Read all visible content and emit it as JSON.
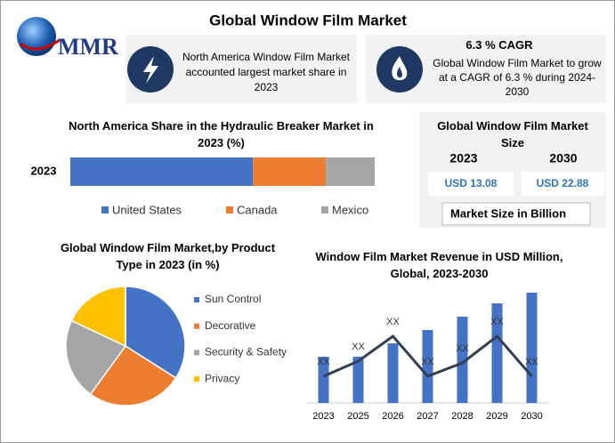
{
  "header": {
    "logo_text": "MMR",
    "title": "Global Window Film Market"
  },
  "highlights": [
    {
      "text": "North America Window Film Market accounted largest market share in 2023"
    },
    {
      "heading": "6.3 % CAGR",
      "text": "Global Window Film Market to grow at a CAGR of 6.3 % during 2024-2030"
    }
  ],
  "market_size": {
    "title": "Global Window Film Market Size",
    "years": [
      "2023",
      "2030"
    ],
    "values": [
      "USD 13.08",
      "USD 22.88"
    ],
    "unit": "Market Size in Billion"
  },
  "chart_data": [
    {
      "type": "bar",
      "stacked": true,
      "orientation": "horizontal",
      "title": "North America Share in the Hydraulic Breaker Market in 2023 (%)",
      "categories": [
        "2023"
      ],
      "legend": "bottom",
      "series": [
        {
          "name": "United States",
          "color": "#4472c4",
          "values": [
            60
          ]
        },
        {
          "name": "Canada",
          "color": "#ed7d31",
          "values": [
            24
          ]
        },
        {
          "name": "Mexico",
          "color": "#a5a5a5",
          "values": [
            16
          ]
        }
      ]
    },
    {
      "type": "pie",
      "title": "Global Window Film Market,by Product Type in 2023 (in %)",
      "legend": "right",
      "categories": [
        "Sun Control",
        "Decorative",
        "Security & Safety",
        "Privacy"
      ],
      "values": [
        34,
        26,
        22,
        18
      ],
      "colors": [
        "#4472c4",
        "#ed7d31",
        "#a5a5a5",
        "#ffc000"
      ]
    },
    {
      "type": "bar",
      "stacked": false,
      "orientation": "vertical",
      "title": "Window Film Market Revenue in USD Million, Global, 2023-2030",
      "categories": [
        "2023",
        "2025",
        "2026",
        "2027",
        "2028",
        "2029",
        "2030"
      ],
      "series": [
        {
          "type": "bar",
          "color": "#4472c4",
          "values": [
            52,
            52,
            67,
            82,
            97,
            112,
            124
          ]
        },
        {
          "type": "line",
          "color": "#333f50",
          "values": [
            30,
            47,
            75,
            30,
            45,
            75,
            30
          ],
          "value_labels": [
            "XX",
            "XX",
            "XX",
            "XX",
            "XX",
            "XX",
            "XX"
          ]
        }
      ]
    }
  ]
}
